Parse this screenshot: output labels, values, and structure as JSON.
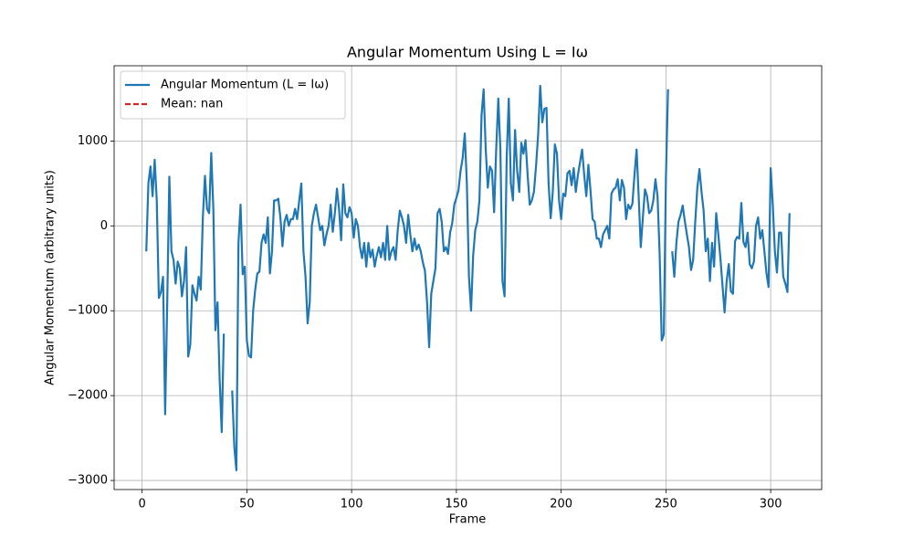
{
  "chart_data": {
    "type": "line",
    "title": "Angular Momentum Using L = Iω",
    "x_label": "Frame",
    "y_label": "Angular Momentum (arbitrary units)",
    "x": [
      2,
      3,
      4,
      5,
      6,
      7,
      8,
      9,
      10,
      11,
      12,
      13,
      14,
      15,
      16,
      17,
      18,
      19,
      20,
      21,
      22,
      23,
      24,
      25,
      26,
      27,
      28,
      29,
      30,
      31,
      32,
      33,
      34,
      35,
      36,
      37,
      38,
      39,
      40,
      41,
      42,
      43,
      44,
      45,
      46,
      47,
      48,
      49,
      50,
      51,
      52,
      53,
      54,
      55,
      56,
      57,
      58,
      59,
      60,
      61,
      62,
      63,
      64,
      65,
      66,
      67,
      68,
      69,
      70,
      71,
      72,
      73,
      74,
      75,
      76,
      77,
      78,
      79,
      80,
      81,
      82,
      83,
      84,
      85,
      86,
      87,
      88,
      89,
      90,
      91,
      92,
      93,
      94,
      95,
      96,
      97,
      98,
      99,
      100,
      101,
      102,
      103,
      104,
      105,
      106,
      107,
      108,
      109,
      110,
      111,
      112,
      113,
      114,
      115,
      116,
      117,
      118,
      119,
      120,
      121,
      122,
      123,
      124,
      125,
      126,
      127,
      128,
      129,
      130,
      131,
      132,
      133,
      134,
      135,
      136,
      137,
      138,
      139,
      140,
      141,
      142,
      143,
      144,
      145,
      146,
      147,
      148,
      149,
      150,
      151,
      152,
      153,
      154,
      155,
      156,
      157,
      158,
      159,
      160,
      161,
      162,
      163,
      164,
      165,
      166,
      167,
      168,
      169,
      170,
      171,
      172,
      173,
      174,
      175,
      176,
      177,
      178,
      179,
      180,
      181,
      182,
      183,
      184,
      185,
      186,
      187,
      188,
      189,
      190,
      191,
      192,
      193,
      194,
      195,
      196,
      197,
      198,
      199,
      200,
      201,
      202,
      203,
      204,
      205,
      206,
      207,
      208,
      209,
      210,
      211,
      212,
      213,
      214,
      215,
      216,
      217,
      218,
      219,
      220,
      221,
      222,
      223,
      224,
      225,
      226,
      227,
      228,
      229,
      230,
      231,
      232,
      233,
      234,
      235,
      236,
      237,
      238,
      239,
      240,
      241,
      242,
      243,
      244,
      245,
      246,
      247,
      248,
      249,
      250,
      251,
      252,
      253,
      254,
      255,
      256,
      257,
      258,
      259,
      260,
      261,
      262,
      263,
      264,
      265,
      266,
      267,
      268,
      269,
      270,
      271,
      272,
      273,
      274,
      275,
      276,
      277,
      278,
      279,
      280,
      281,
      282,
      283,
      284,
      285,
      286,
      287,
      288,
      289,
      290,
      291,
      292,
      293,
      294,
      295,
      296,
      297,
      298,
      299,
      300,
      301,
      302,
      303,
      304,
      305,
      306,
      307,
      308,
      309
    ],
    "series": [
      {
        "name": "Angular Momentum (L = Iω)",
        "color": "#1f77b4",
        "values": [
          -300,
          500,
          700,
          350,
          780,
          300,
          -850,
          -780,
          -600,
          -2220,
          -900,
          580,
          -300,
          -400,
          -680,
          -420,
          -500,
          -830,
          -650,
          -250,
          -1540,
          -1400,
          -700,
          -800,
          -880,
          -600,
          -750,
          100,
          590,
          200,
          150,
          860,
          200,
          -1230,
          -900,
          -1800,
          -2430,
          -1270,
          null,
          null,
          null,
          -1940,
          -2600,
          -2880,
          -200,
          250,
          -570,
          -480,
          -1350,
          -1530,
          -1550,
          -1000,
          -750,
          -560,
          -540,
          -200,
          -100,
          -200,
          100,
          -560,
          -300,
          300,
          300,
          320,
          100,
          -240,
          50,
          130,
          0,
          80,
          80,
          200,
          80,
          300,
          500,
          -300,
          -600,
          -1150,
          -900,
          0,
          150,
          250,
          100,
          -50,
          0,
          -230,
          -100,
          0,
          250,
          -70,
          150,
          440,
          200,
          -170,
          490,
          150,
          100,
          220,
          150,
          -140,
          80,
          0,
          -250,
          -380,
          -200,
          -480,
          -200,
          -370,
          -280,
          -480,
          -350,
          -250,
          -370,
          -200,
          -400,
          0,
          -400,
          -300,
          -250,
          -400,
          -50,
          180,
          100,
          0,
          -200,
          130,
          -100,
          -300,
          -150,
          -280,
          -220,
          -300,
          -430,
          -530,
          -900,
          -1430,
          -800,
          -650,
          -500,
          150,
          200,
          50,
          -300,
          -250,
          -330,
          -80,
          30,
          250,
          330,
          420,
          650,
          800,
          1090,
          500,
          -600,
          -1000,
          -350,
          -50,
          50,
          300,
          1300,
          1610,
          900,
          450,
          700,
          650,
          160,
          900,
          1500,
          900,
          -650,
          -830,
          800,
          1500,
          500,
          300,
          1130,
          650,
          400,
          980,
          850,
          1010,
          600,
          250,
          300,
          400,
          700,
          1070,
          1650,
          1220,
          1380,
          1390,
          500,
          90,
          400,
          960,
          850,
          300,
          80,
          380,
          350,
          620,
          650,
          480,
          680,
          400,
          600,
          750,
          900,
          600,
          350,
          720,
          420,
          80,
          50,
          -150,
          -150,
          -250,
          -100,
          -50,
          0,
          -150,
          380,
          430,
          450,
          550,
          300,
          540,
          450,
          80,
          250,
          200,
          260,
          600,
          900,
          350,
          -250,
          100,
          430,
          350,
          150,
          180,
          300,
          550,
          350,
          -330,
          -1350,
          -1280,
          560,
          1610,
          null,
          -300,
          -600,
          -200,
          50,
          130,
          240,
          60,
          -100,
          -250,
          -520,
          -400,
          50,
          450,
          670,
          400,
          180,
          -300,
          -150,
          -650,
          -200,
          -480,
          150,
          -100,
          -380,
          -700,
          -1020,
          -650,
          -450,
          -770,
          -800,
          -180,
          -130,
          -150,
          270,
          -190,
          -250,
          -80,
          -450,
          -500,
          -420,
          0,
          100,
          -150,
          -50,
          -300,
          -560,
          -720,
          680,
          250,
          -300,
          -550,
          -80,
          -80,
          -600,
          -680,
          -780,
          150
        ]
      }
    ],
    "reference_lines": [
      {
        "name": "Mean: nan",
        "color": "#d62728",
        "linestyle": "dashed",
        "value": null
      }
    ],
    "xlim": [
      -13.35,
      324.35
    ],
    "ylim": [
      -3107,
      1887
    ],
    "xticks": [
      0,
      50,
      100,
      150,
      200,
      250,
      300
    ],
    "yticks": [
      {
        "value": -3000,
        "label": "−3000"
      },
      {
        "value": -2000,
        "label": "−2000"
      },
      {
        "value": -1000,
        "label": "−1000"
      },
      0,
      1000
    ],
    "grid": true,
    "legend": "upper left"
  }
}
